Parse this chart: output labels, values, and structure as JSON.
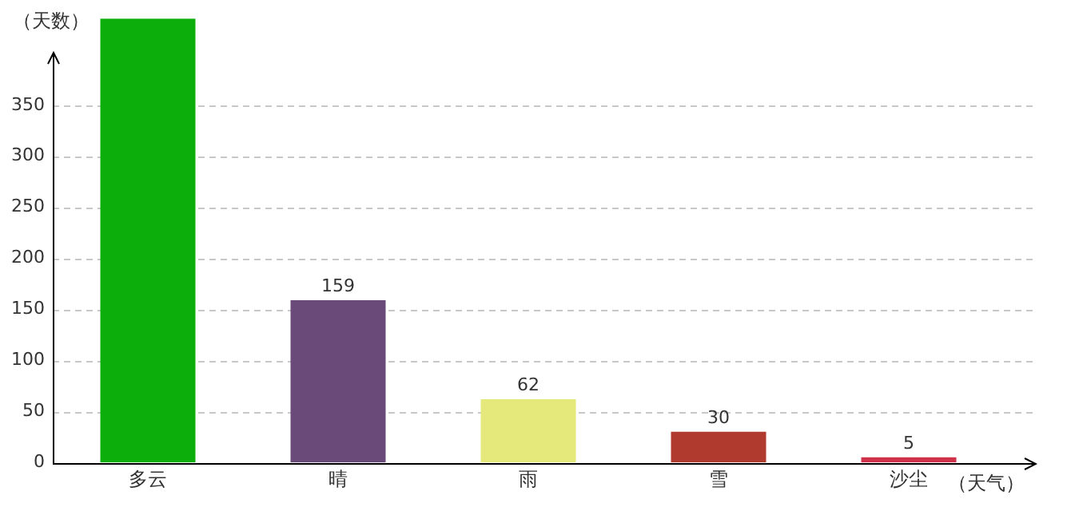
{
  "chart_data": {
    "type": "bar",
    "xlabel": "（天气）",
    "ylabel": "（天数）",
    "categories": [
      "多云",
      "晴",
      "雨",
      "雪",
      "沙尘"
    ],
    "values": [
      435,
      159,
      62,
      30,
      5
    ],
    "colors": [
      "#0cae0c",
      "#6a4a78",
      "#e5e87a",
      "#b03a2e",
      "#d0314a"
    ],
    "value_labels": [
      null,
      "159",
      "62",
      "30",
      "5"
    ],
    "ylim": [
      0,
      435
    ],
    "yticks": [
      0,
      50,
      100,
      150,
      200,
      250,
      300,
      350
    ],
    "grid": "y",
    "legend": false
  }
}
